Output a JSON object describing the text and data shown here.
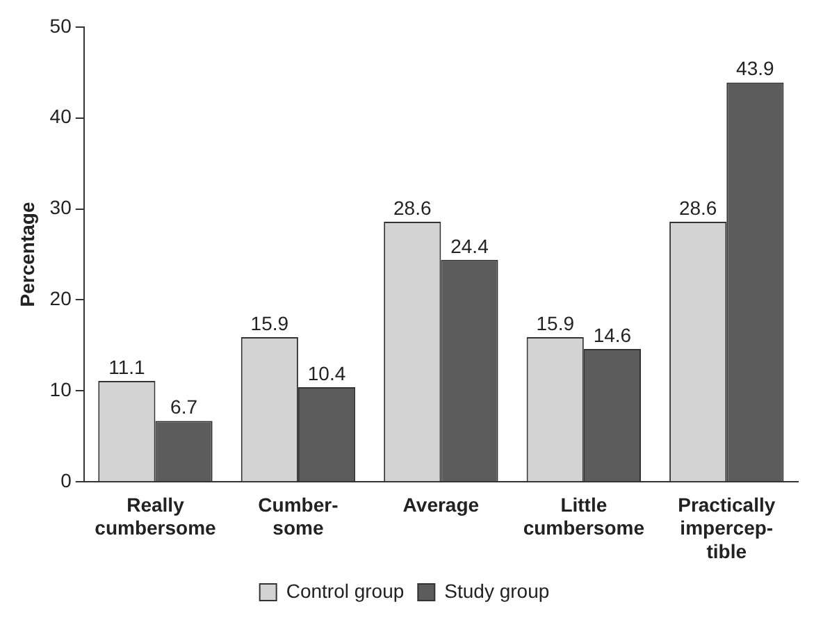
{
  "chart_data": {
    "type": "bar",
    "ylabel": "Percentage",
    "categories": [
      "Really\ncumbersome",
      "Cumber-\nsome",
      "Average",
      "Little\ncumbersome",
      "Practically\nimpercep-\ntible"
    ],
    "series": [
      {
        "name": "Control group",
        "color": "#d3d3d3",
        "values": [
          11.1,
          15.9,
          28.6,
          15.9,
          28.6
        ]
      },
      {
        "name": "Study group",
        "color": "#5c5c5c",
        "values": [
          6.7,
          10.4,
          24.4,
          14.6,
          43.9
        ]
      }
    ],
    "ylim": [
      0,
      50
    ],
    "yticks": [
      0,
      10,
      20,
      30,
      40,
      50
    ],
    "grid": false,
    "legend": "bottom",
    "data_labels": true
  }
}
